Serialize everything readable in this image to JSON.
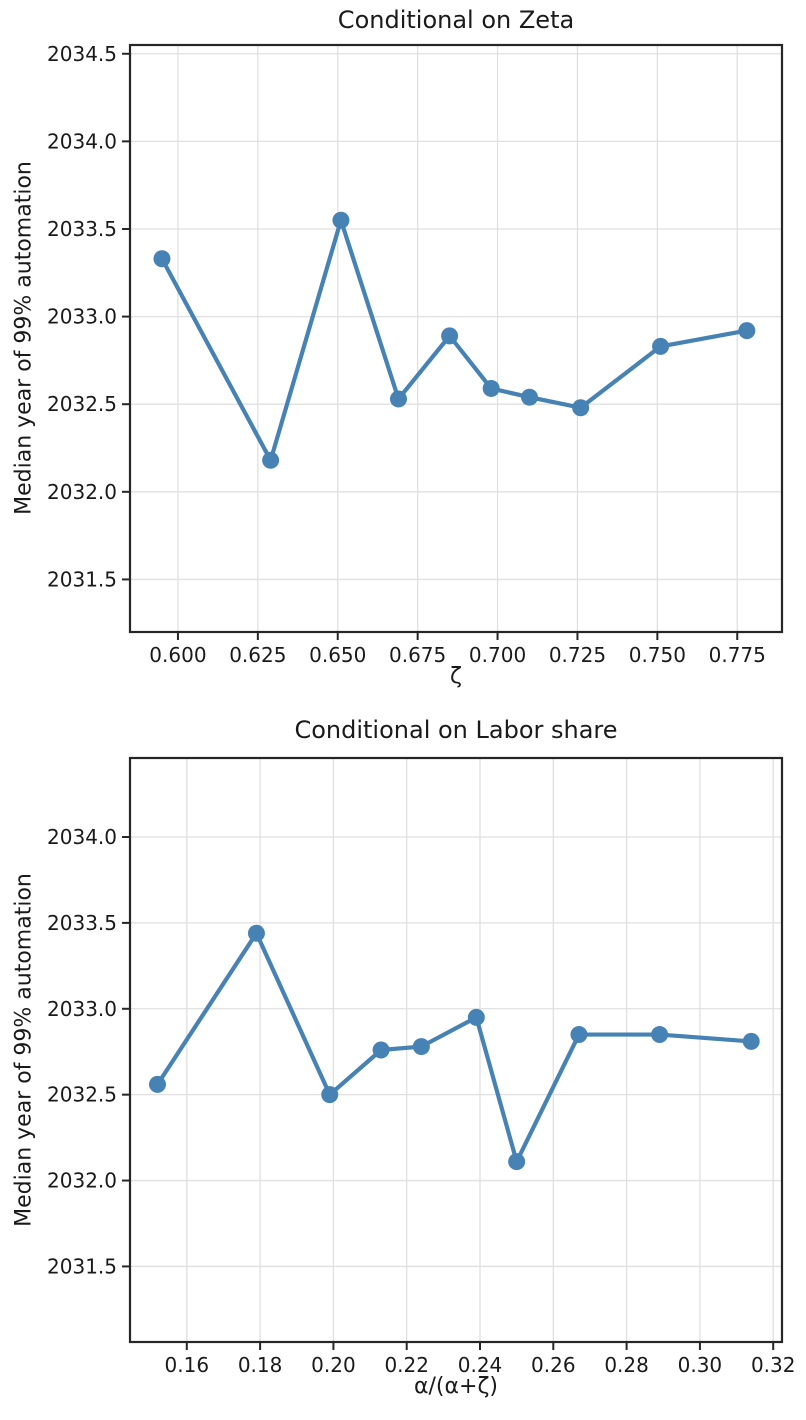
{
  "colors": {
    "line": "#4682B4",
    "grid": "#e0e0e0",
    "spine": "#262626",
    "text": "#1a1a1a",
    "background": "#ffffff"
  },
  "chart_data": [
    {
      "type": "line",
      "title": "Conditional on Zeta",
      "xlabel": "ζ",
      "ylabel": "Median year of 99% automation",
      "x": [
        0.595,
        0.629,
        0.651,
        0.669,
        0.685,
        0.698,
        0.71,
        0.726,
        0.751,
        0.778
      ],
      "y": [
        2033.33,
        2032.18,
        2033.55,
        2032.53,
        2032.89,
        2032.59,
        2032.54,
        2032.48,
        2032.83,
        2032.92
      ],
      "xlim": [
        0.585,
        0.789
      ],
      "ylim": [
        2031.2,
        2034.55
      ],
      "xticks": [
        0.6,
        0.625,
        0.65,
        0.675,
        0.7,
        0.725,
        0.75,
        0.775
      ],
      "xtick_labels": [
        "0.600",
        "0.625",
        "0.650",
        "0.675",
        "0.700",
        "0.725",
        "0.750",
        "0.775"
      ],
      "yticks": [
        2031.5,
        2032.0,
        2032.5,
        2033.0,
        2033.5,
        2034.0,
        2034.5
      ],
      "ytick_labels": [
        "2031.5",
        "2032.0",
        "2032.5",
        "2033.0",
        "2033.5",
        "2034.0",
        "2034.5"
      ],
      "grid": true,
      "legend": null,
      "marker": "circle",
      "line_color": "#4682B4"
    },
    {
      "type": "line",
      "title": "Conditional on Labor share",
      "xlabel": "α/(α+ζ)",
      "ylabel": "Median year of 99% automation",
      "x": [
        0.152,
        0.179,
        0.199,
        0.213,
        0.224,
        0.239,
        0.25,
        0.267,
        0.289,
        0.314
      ],
      "y": [
        2032.56,
        2033.44,
        2032.5,
        2032.76,
        2032.78,
        2032.95,
        2032.11,
        2032.85,
        2032.85,
        2032.81
      ],
      "xlim": [
        0.1445,
        0.3224
      ],
      "ylim": [
        2031.06,
        2034.46
      ],
      "xticks": [
        0.16,
        0.18,
        0.2,
        0.22,
        0.24,
        0.26,
        0.28,
        0.3,
        0.32
      ],
      "xtick_labels": [
        "0.16",
        "0.18",
        "0.20",
        "0.22",
        "0.24",
        "0.26",
        "0.28",
        "0.30",
        "0.32"
      ],
      "yticks": [
        2031.5,
        2032.0,
        2032.5,
        2033.0,
        2033.5,
        2034.0
      ],
      "ytick_labels": [
        "2031.5",
        "2032.0",
        "2032.5",
        "2033.0",
        "2033.5",
        "2034.0"
      ],
      "grid": true,
      "legend": null,
      "marker": "circle",
      "line_color": "#4682B4"
    }
  ]
}
